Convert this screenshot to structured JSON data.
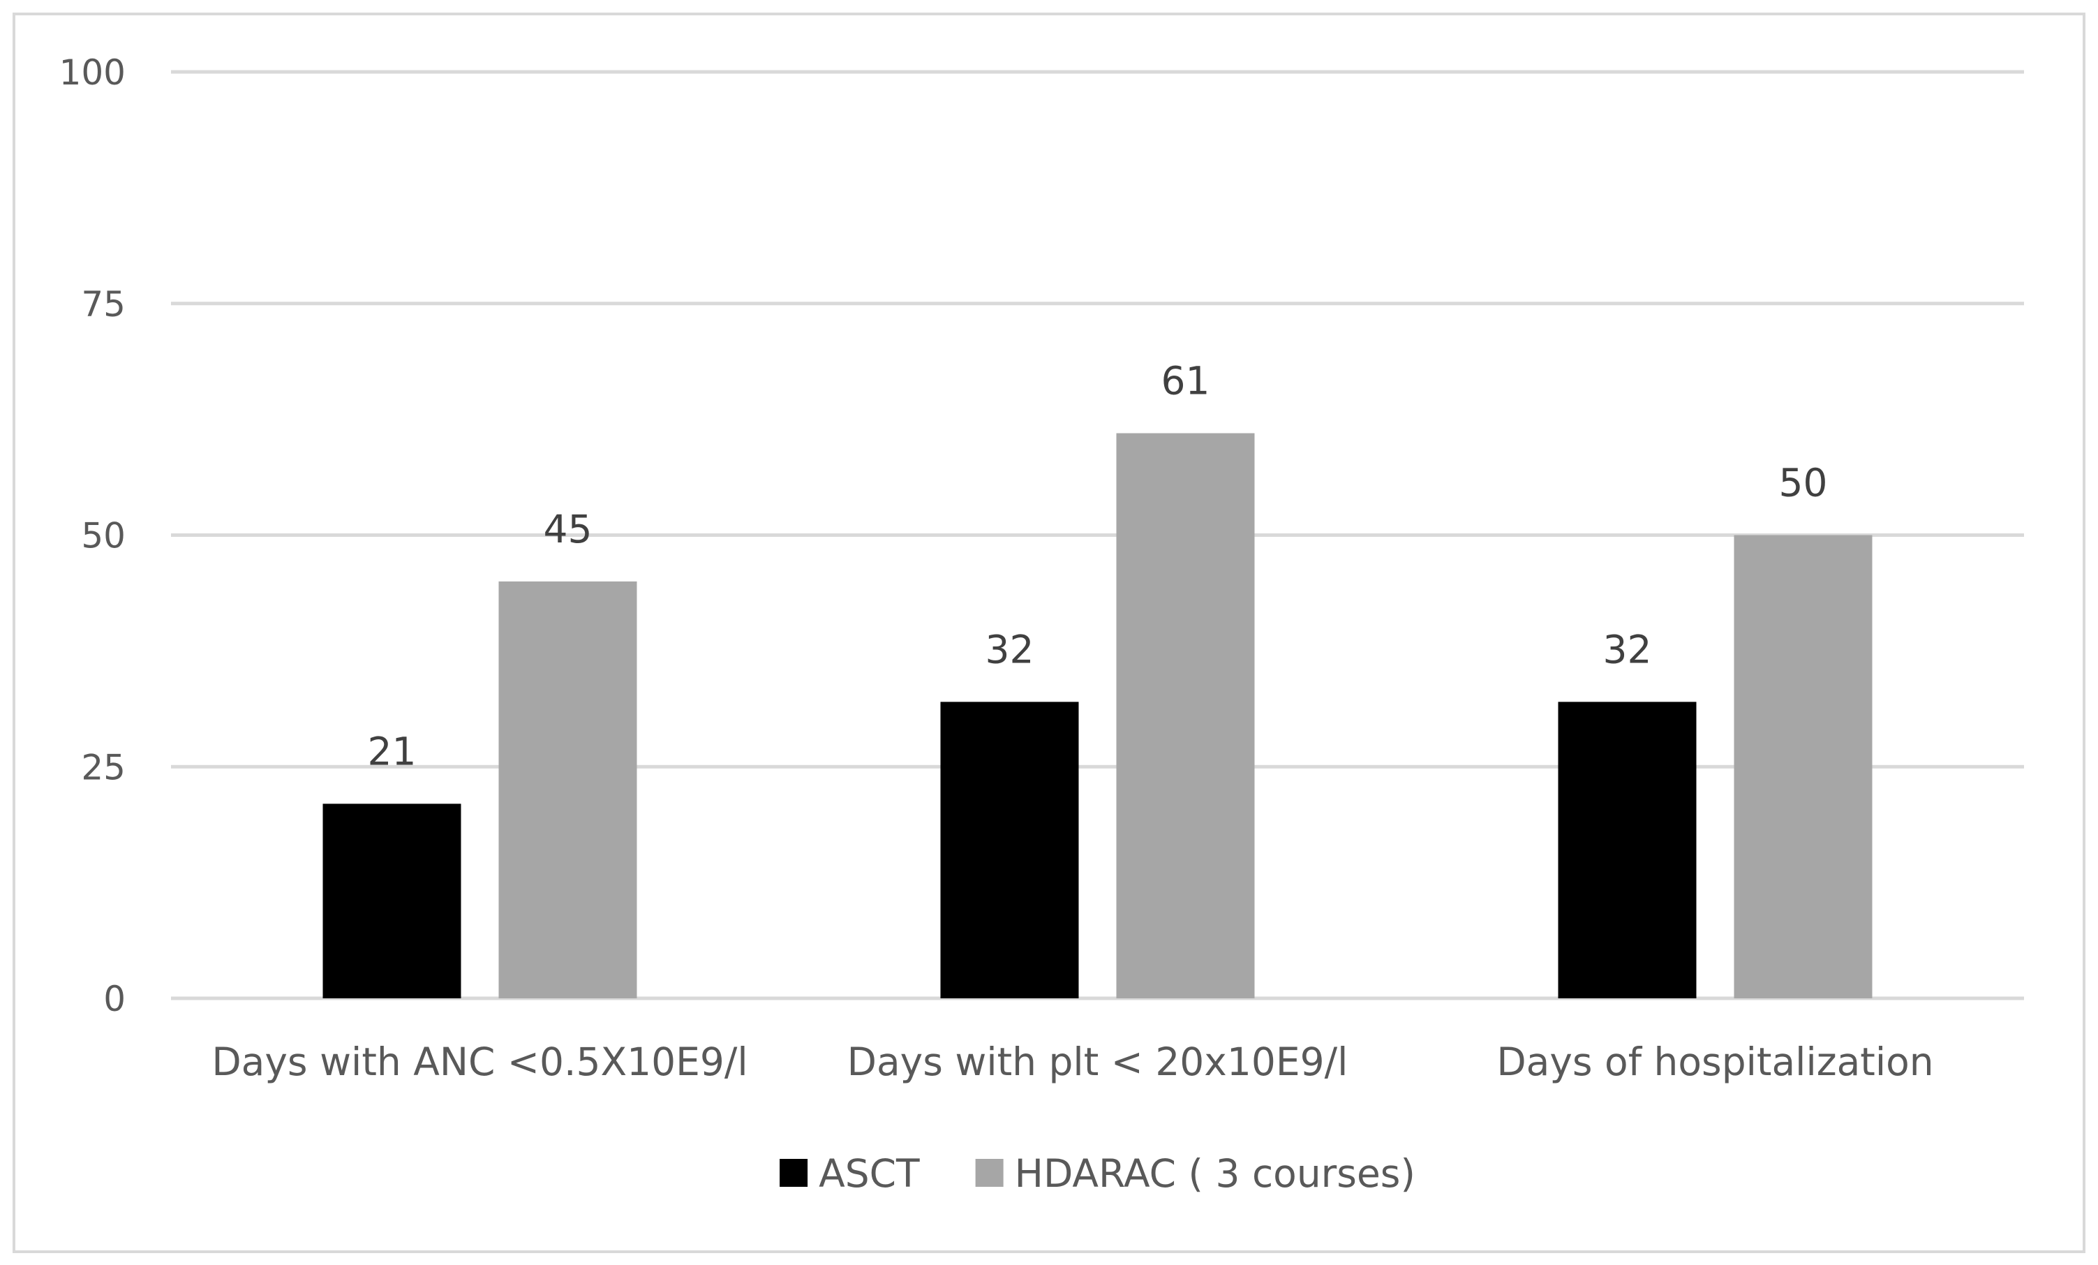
{
  "chart_data": {
    "type": "bar",
    "title": "",
    "xlabel": "",
    "ylabel": "",
    "categories": [
      "Days with ANC <0.5X10E9/l",
      "Days with plt < 20x10E9/l",
      "Days of hospitalization"
    ],
    "series": [
      {
        "name": "ASCT",
        "color": "#000000",
        "values": [
          21,
          32,
          32
        ]
      },
      {
        "name": "HDARAC ( 3 courses)",
        "color": "#a6a6a6",
        "values": [
          45,
          61,
          50
        ]
      }
    ],
    "ylim": [
      0,
      100
    ],
    "yticks": [
      0,
      25,
      50,
      75,
      100
    ],
    "grid": true,
    "legend": "bottom-center",
    "data_labels": true
  }
}
